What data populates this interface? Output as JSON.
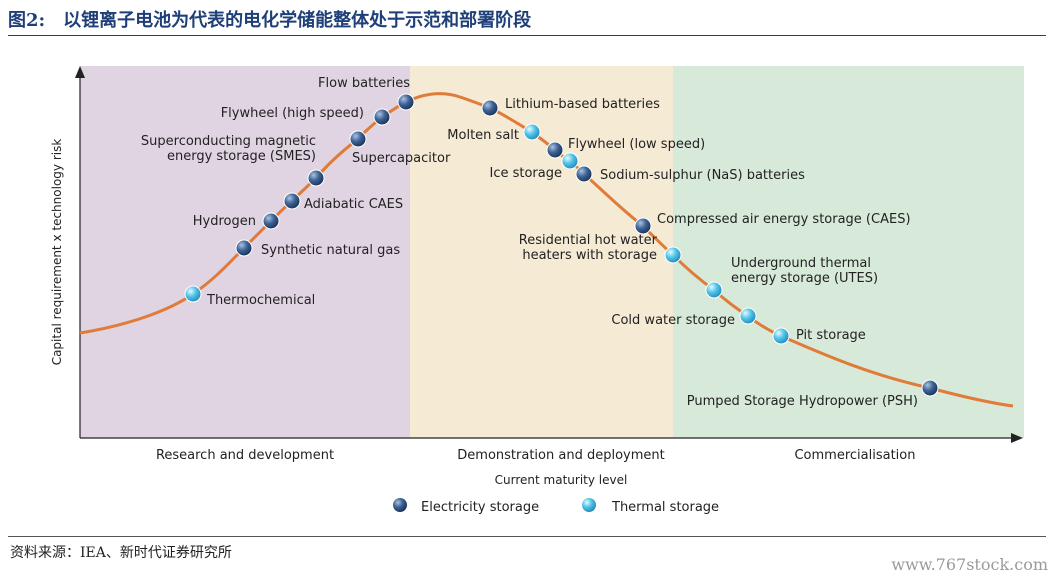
{
  "figure": {
    "number": "图2:",
    "title": "以锂离子电池为代表的电化学储能整体处于示范和部署阶段"
  },
  "diagram": {
    "y_axis_label": "Capital requirement x technology risk",
    "x_axis_label": "Current maturity level",
    "phases": [
      {
        "name": "Research and development",
        "color": "#e0d4e2"
      },
      {
        "name": "Demonstration and deployment",
        "color": "#f5ead4"
      },
      {
        "name": "Commercialisation",
        "color": "#d7e9d8"
      }
    ],
    "curve_color": "#e07b39",
    "legend": [
      {
        "type": "electricity",
        "label": "Electricity storage"
      },
      {
        "type": "thermal",
        "label": "Thermal storage"
      }
    ],
    "technologies": [
      {
        "name": "Thermochemical",
        "type": "thermal"
      },
      {
        "name": "Synthetic natural gas",
        "type": "electricity"
      },
      {
        "name": "Hydrogen",
        "type": "electricity"
      },
      {
        "name": "Adiabatic CAES",
        "type": "electricity"
      },
      {
        "name": "Superconducting magnetic\nenergy storage (SMES)",
        "type": "electricity"
      },
      {
        "name": "Supercapacitor",
        "type": "electricity"
      },
      {
        "name": "Flywheel (high speed)",
        "type": "electricity"
      },
      {
        "name": "Flow batteries",
        "type": "electricity"
      },
      {
        "name": "Lithium-based batteries",
        "type": "electricity"
      },
      {
        "name": "Molten salt",
        "type": "thermal"
      },
      {
        "name": "Flywheel (low speed)",
        "type": "electricity"
      },
      {
        "name": "Ice storage",
        "type": "thermal"
      },
      {
        "name": "Sodium-sulphur (NaS) batteries",
        "type": "electricity"
      },
      {
        "name": "Compressed air energy storage (CAES)",
        "type": "electricity"
      },
      {
        "name": "Residential hot water\nheaters with storage",
        "type": "thermal"
      },
      {
        "name": "Underground thermal\nenergy storage (UTES)",
        "type": "thermal"
      },
      {
        "name": "Cold water storage",
        "type": "thermal"
      },
      {
        "name": "Pit storage",
        "type": "thermal"
      },
      {
        "name": "Pumped Storage Hydropower (PSH)",
        "type": "electricity"
      }
    ]
  },
  "source_note": "资料来源：IEA、新时代证券研究所",
  "watermark": "www.767stock.com"
}
